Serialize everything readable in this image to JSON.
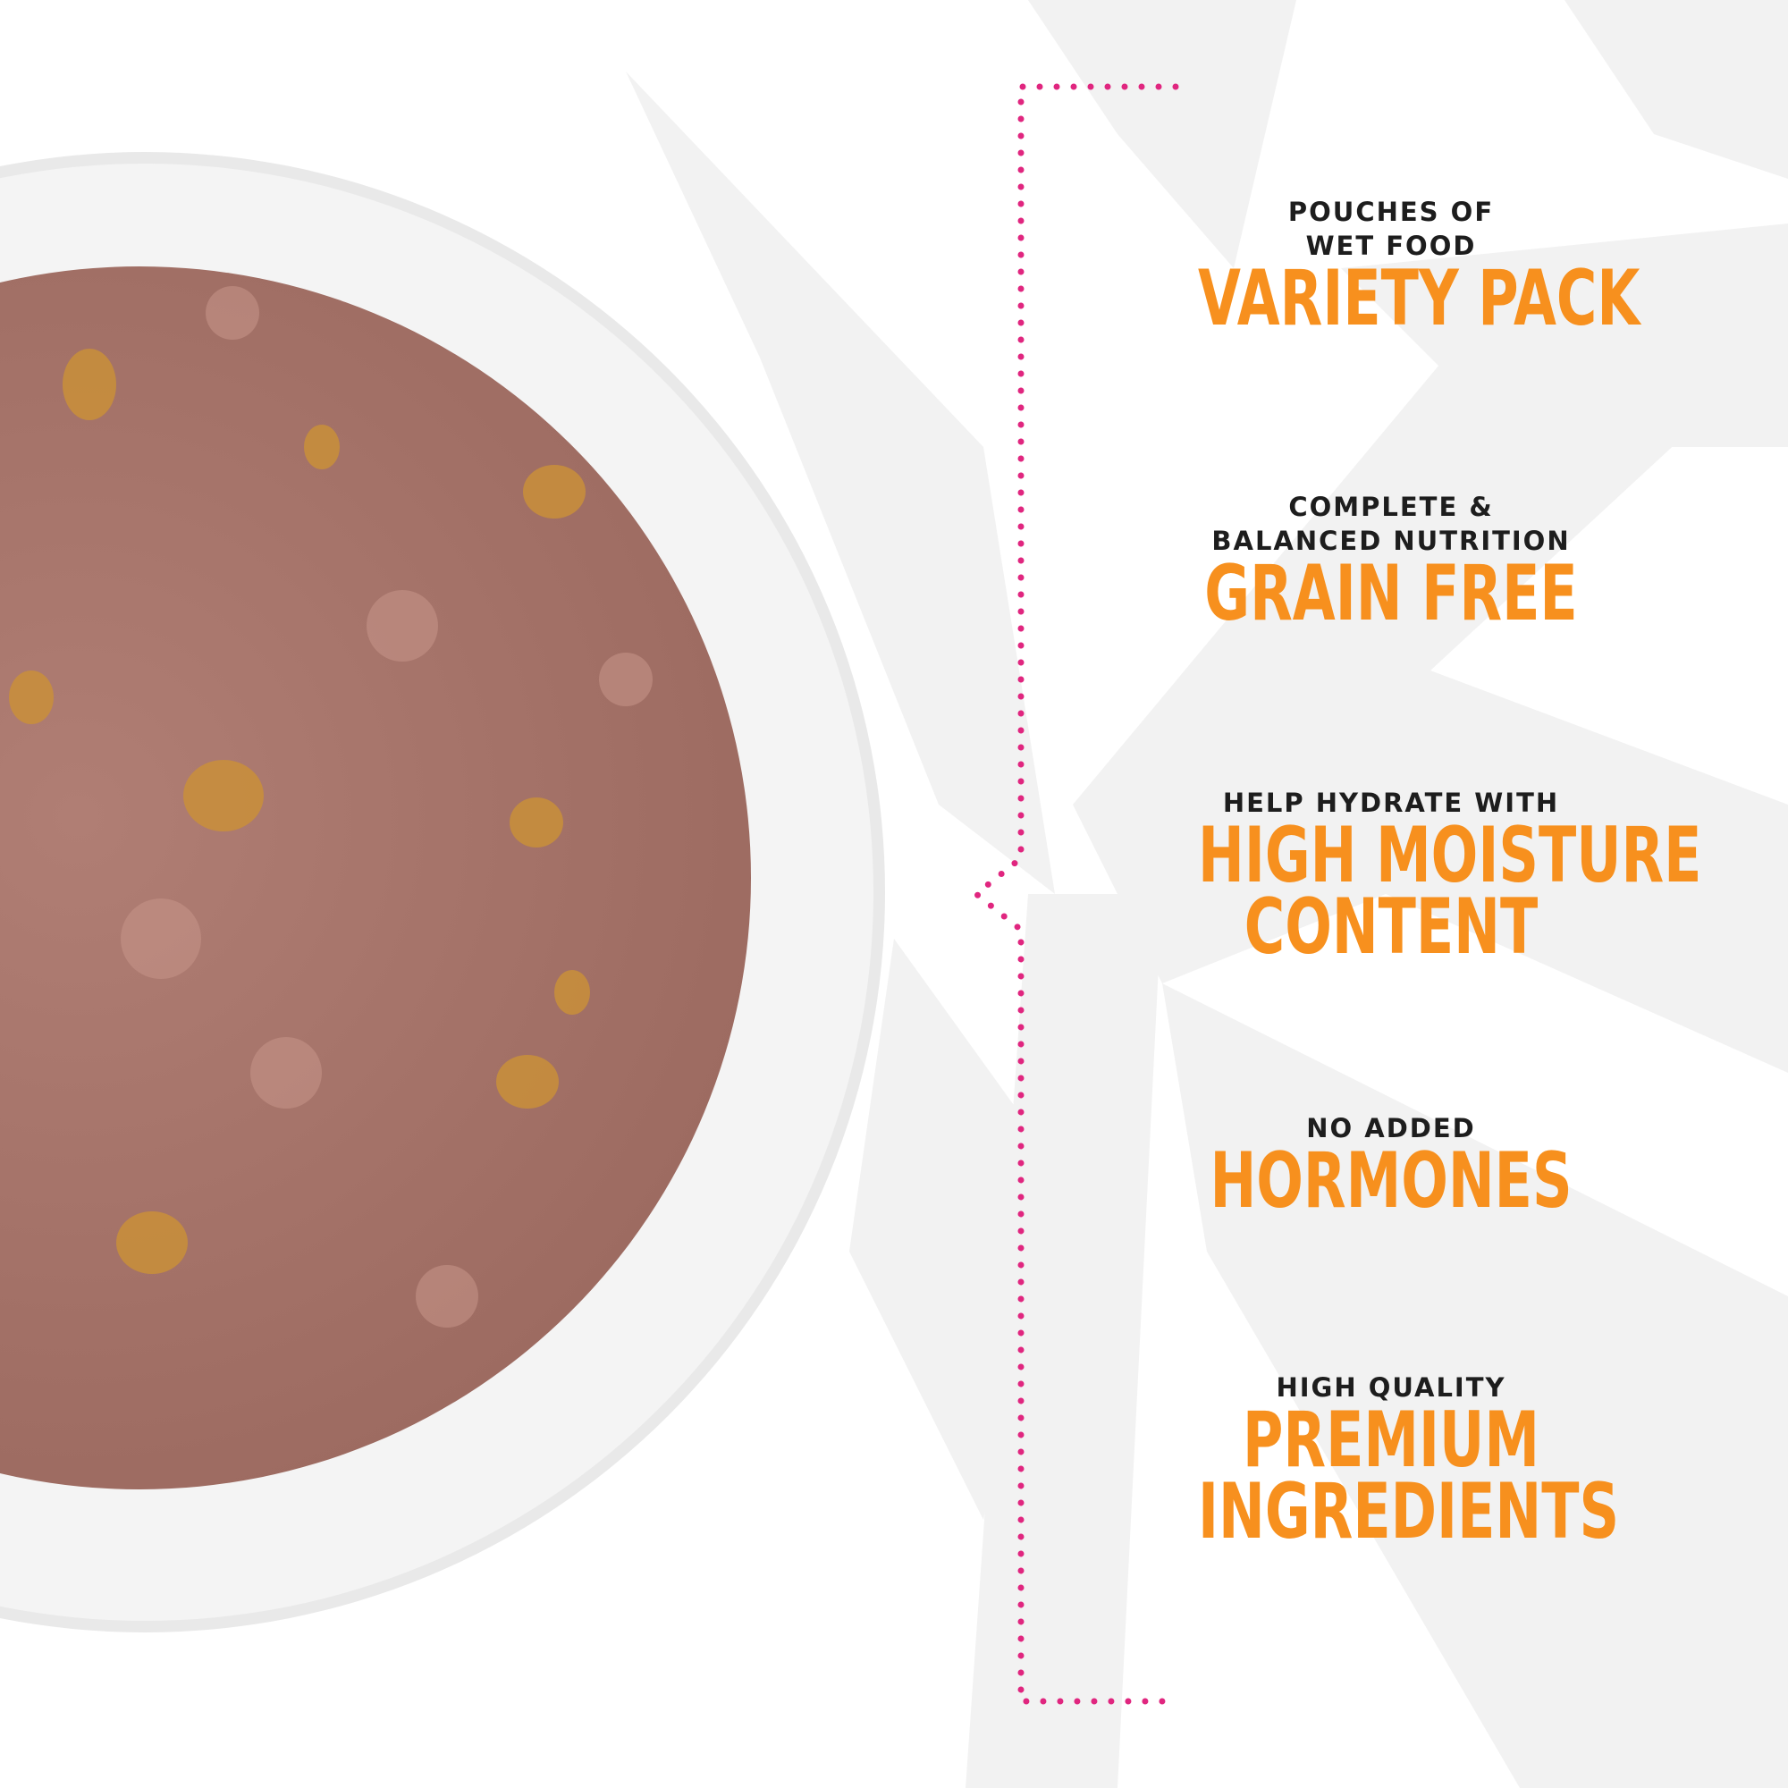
{
  "colors": {
    "accent_orange": "#f7901e",
    "bracket_pink": "#e0267f",
    "text_dark": "#1d1d1d",
    "palm_gray": "#f2f2f2"
  },
  "features": [
    {
      "small": [
        "POUCHES OF",
        "WET FOOD"
      ],
      "big": [
        "VARIETY PACK"
      ]
    },
    {
      "small": [
        "COMPLETE &",
        "BALANCED NUTRITION"
      ],
      "big": [
        "GRAIN FREE"
      ]
    },
    {
      "small": [
        "HELP HYDRATE WITH"
      ],
      "big": [
        "HIGH MOISTURE",
        "CONTENT"
      ]
    },
    {
      "small": [
        "NO ADDED"
      ],
      "big": [
        "HORMONES"
      ]
    },
    {
      "small": [
        "HIGH QUALITY"
      ],
      "big": [
        "PREMIUM",
        "INGREDIENTS"
      ]
    }
  ]
}
